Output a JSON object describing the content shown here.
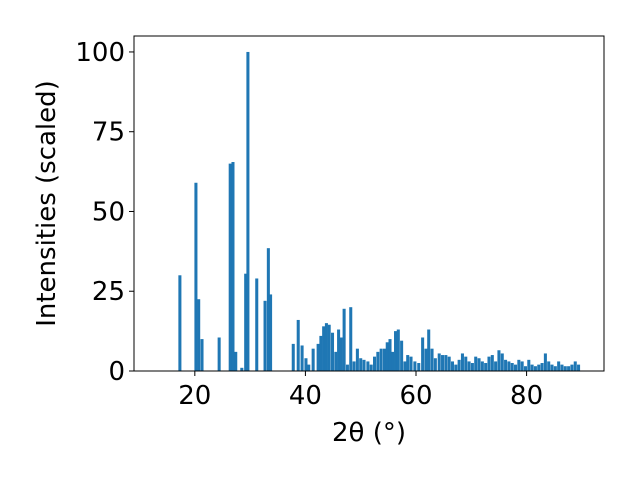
{
  "chart_data": {
    "type": "bar",
    "title": "",
    "xlabel": "2θ (°)",
    "ylabel": "Intensities (scaled)",
    "xlim": [
      9.0,
      94.0
    ],
    "ylim": [
      0,
      105
    ],
    "xticks": [
      20,
      40,
      60,
      80
    ],
    "xtick_labels": [
      "20",
      "40",
      "60",
      "80"
    ],
    "yticks": [
      0,
      25,
      50,
      75,
      100
    ],
    "ytick_labels": [
      "0",
      "25",
      "50",
      "75",
      "100"
    ],
    "bar_width": 0.55,
    "bar_color": "#1f77b4",
    "grid": false,
    "legend": "none",
    "x": [
      17.3,
      20.2,
      20.7,
      21.3,
      24.4,
      26.4,
      26.9,
      27.4,
      28.5,
      29.2,
      29.6,
      31.2,
      32.7,
      33.3,
      33.7,
      37.8,
      38.7,
      39.4,
      40.1,
      40.6,
      41.4,
      42.3,
      42.8,
      43.3,
      43.8,
      44.3,
      44.9,
      45.5,
      46.0,
      46.5,
      47.0,
      47.6,
      48.2,
      48.8,
      49.4,
      50.0,
      50.6,
      51.3,
      51.9,
      52.5,
      53.1,
      53.7,
      54.3,
      54.8,
      55.3,
      55.8,
      56.3,
      56.8,
      57.4,
      58.0,
      58.5,
      59.1,
      59.8,
      60.5,
      61.2,
      61.8,
      62.3,
      62.9,
      63.5,
      64.2,
      64.8,
      65.4,
      66.0,
      66.6,
      67.2,
      67.8,
      68.4,
      69.0,
      69.6,
      70.2,
      70.8,
      71.4,
      72.0,
      72.6,
      73.2,
      73.8,
      74.4,
      75.0,
      75.6,
      76.2,
      76.8,
      77.4,
      78.0,
      78.6,
      79.2,
      79.8,
      80.4,
      81.0,
      81.6,
      82.2,
      82.8,
      83.4,
      84.0,
      84.6,
      85.2,
      85.8,
      86.4,
      87.0,
      87.6,
      88.2,
      88.8,
      89.4
    ],
    "values": [
      30,
      59,
      22.5,
      10,
      10.5,
      65,
      65.5,
      6,
      1,
      30.5,
      100,
      29,
      22,
      38.5,
      24,
      8.5,
      16,
      8,
      4,
      2,
      7,
      8.5,
      11,
      14,
      15,
      14.5,
      12,
      6,
      13,
      10.5,
      19.5,
      2,
      20,
      3,
      7,
      4,
      3.5,
      3,
      2,
      4.5,
      6,
      7,
      7,
      9,
      10,
      6,
      12.5,
      13,
      9.5,
      3,
      5,
      4.5,
      3,
      2.5,
      10.5,
      7,
      13,
      7,
      4,
      5.5,
      5,
      5,
      4.5,
      3,
      2,
      3.5,
      5.5,
      4.5,
      3,
      2.5,
      4.5,
      4,
      3,
      2.5,
      4.5,
      5,
      3,
      6.5,
      5.5,
      3.5,
      3,
      2.5,
      2,
      3.5,
      3,
      1.5,
      3.5,
      2,
      1.5,
      2,
      2.5,
      5.5,
      3,
      2,
      1.5,
      3,
      2,
      1.5,
      1.5,
      2,
      3,
      2
    ]
  }
}
